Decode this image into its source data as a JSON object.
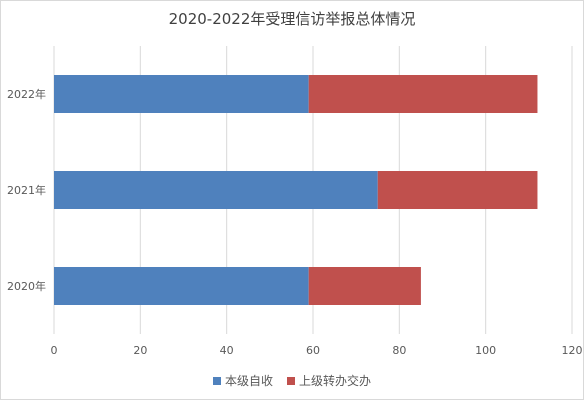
{
  "chart_data": {
    "type": "bar",
    "orientation": "horizontal",
    "stacked": true,
    "title": "2020-2022年受理信访举报总体情况",
    "categories": [
      "2022年",
      "2021年",
      "2020年"
    ],
    "series": [
      {
        "name": "本级自收",
        "color": "#4f81bd",
        "values": [
          59,
          75,
          59
        ]
      },
      {
        "name": "上级转办交办",
        "color": "#c0504d",
        "values": [
          53,
          37,
          26
        ]
      }
    ],
    "xlim": [
      0,
      120
    ],
    "xticks": [
      0,
      20,
      40,
      60,
      80,
      100,
      120
    ],
    "grid": true,
    "legend_position": "bottom"
  }
}
